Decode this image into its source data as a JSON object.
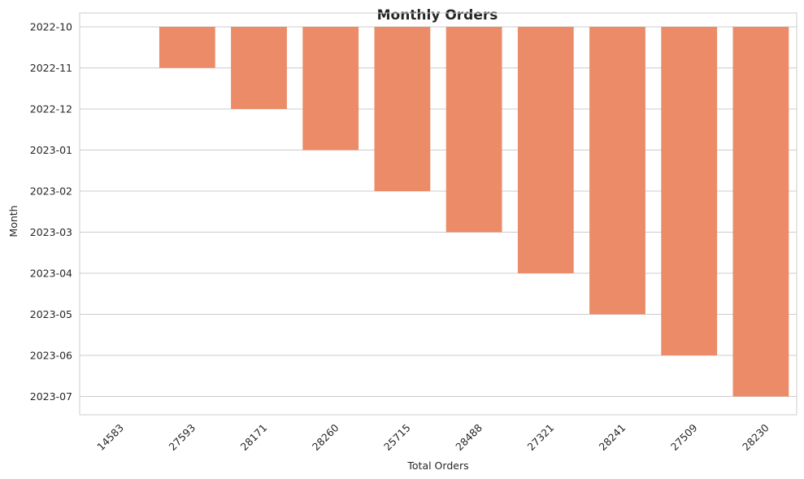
{
  "chart_data": {
    "type": "bar",
    "title": "Monthly Orders",
    "xlabel": "Total Orders",
    "ylabel": "Month",
    "categories": [
      "14583",
      "27593",
      "28171",
      "28260",
      "25715",
      "28488",
      "27321",
      "28241",
      "27509",
      "28230"
    ],
    "y_ticks": [
      "2022-10",
      "2022-11",
      "2022-12",
      "2023-01",
      "2023-02",
      "2023-03",
      "2023-04",
      "2023-05",
      "2023-06",
      "2023-07"
    ],
    "values": [
      "2022-10",
      "2022-11",
      "2022-12",
      "2023-01",
      "2023-02",
      "2023-03",
      "2023-04",
      "2023-05",
      "2023-06",
      "2023-07"
    ],
    "y_axis_inverted": true,
    "bar_color": "#eb8b67",
    "grid": "horizontal",
    "legend": "none"
  }
}
